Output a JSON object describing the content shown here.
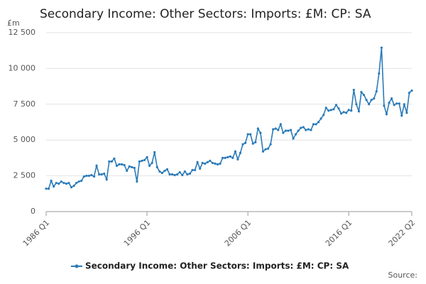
{
  "chart_data": {
    "type": "line",
    "title": "Secondary Income: Other Sectors: Imports: £M: CP: SA",
    "y_unit": "£m",
    "source": "Source:",
    "categories": [
      "1986 Q1",
      null,
      null,
      null,
      null,
      null,
      null,
      null,
      null,
      null,
      null,
      null,
      null,
      null,
      null,
      null,
      null,
      null,
      null,
      null,
      null,
      null,
      null,
      null,
      null,
      null,
      null,
      null,
      null,
      null,
      null,
      null,
      null,
      null,
      null,
      null,
      null,
      null,
      null,
      null,
      "1996 Q1",
      null,
      null,
      null,
      null,
      null,
      null,
      null,
      null,
      null,
      null,
      null,
      null,
      null,
      null,
      null,
      null,
      null,
      null,
      null,
      null,
      null,
      null,
      null,
      null,
      null,
      null,
      null,
      null,
      null,
      null,
      null,
      null,
      null,
      null,
      null,
      null,
      null,
      null,
      null,
      "2006 Q1",
      null,
      null,
      null,
      null,
      null,
      null,
      null,
      null,
      null,
      null,
      null,
      null,
      null,
      null,
      null,
      null,
      null,
      null,
      null,
      null,
      null,
      null,
      null,
      null,
      null,
      null,
      null,
      null,
      null,
      null,
      null,
      null,
      null,
      null,
      null,
      null,
      null,
      null,
      null,
      "2016 Q1",
      null,
      null,
      null,
      null,
      null,
      null,
      null,
      null,
      null,
      null,
      null,
      null,
      null,
      null,
      null,
      null,
      null,
      null,
      null,
      null,
      null,
      null,
      null,
      null,
      "2022 Q2"
    ],
    "series": [
      {
        "name": "Secondary Income: Other Sectors: Imports: £M: CP: SA",
        "color": "#2b7bb9",
        "values": [
          1600,
          1600,
          2150,
          1750,
          2000,
          1950,
          2100,
          2000,
          1950,
          2000,
          1700,
          1800,
          2000,
          2100,
          2150,
          2450,
          2500,
          2500,
          2550,
          2450,
          3200,
          2600,
          2600,
          2650,
          2250,
          3500,
          3500,
          3700,
          3200,
          3300,
          3300,
          3250,
          2850,
          3150,
          3100,
          3050,
          2100,
          3500,
          3550,
          3600,
          3800,
          3200,
          3400,
          4150,
          3100,
          2800,
          2700,
          2850,
          2950,
          2600,
          2600,
          2550,
          2600,
          2750,
          2550,
          2800,
          2600,
          2650,
          2900,
          2900,
          3450,
          3000,
          3400,
          3350,
          3450,
          3550,
          3400,
          3350,
          3300,
          3350,
          3750,
          3750,
          3800,
          3850,
          3750,
          4200,
          3650,
          4100,
          4700,
          4800,
          5400,
          5400,
          4750,
          4850,
          5800,
          5500,
          4200,
          4350,
          4400,
          4700,
          5750,
          5800,
          5700,
          6100,
          5500,
          5650,
          5650,
          5700,
          5100,
          5400,
          5650,
          5850,
          5900,
          5700,
          5750,
          5700,
          6100,
          6100,
          6250,
          6500,
          6750,
          7250,
          7050,
          7100,
          7150,
          7450,
          7200,
          6850,
          6950,
          6900,
          7100,
          7050,
          8500,
          7500,
          7000,
          8350,
          8150,
          7800,
          7500,
          7800,
          7900,
          8400,
          9650,
          11450,
          7400,
          6800,
          7600,
          7900,
          7450,
          7550,
          7550,
          6700,
          7500,
          6900,
          8300,
          8450
        ]
      }
    ],
    "ylim": [
      0,
      12500
    ],
    "yticks": [
      0,
      {
        "value": 2500,
        "label": "2 500"
      },
      {
        "value": 5000,
        "label": "5 000"
      },
      {
        "value": 7500,
        "label": "7 500"
      },
      {
        "value": 10000,
        "label": "10 000"
      },
      {
        "value": 12500,
        "label": "12 500"
      }
    ],
    "grid": true
  }
}
